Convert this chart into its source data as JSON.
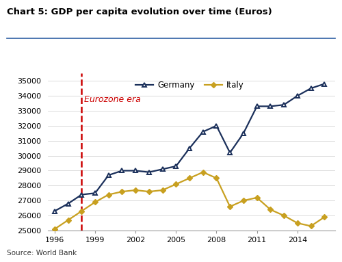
{
  "title": "Chart 5: GDP per capita evolution over time (Euros)",
  "source": "Source: World Bank",
  "years": [
    1996,
    1997,
    1998,
    1999,
    2000,
    2001,
    2002,
    2003,
    2004,
    2005,
    2006,
    2007,
    2008,
    2009,
    2010,
    2011,
    2012,
    2013,
    2014,
    2015,
    2016
  ],
  "germany": [
    26300,
    26800,
    27400,
    27500,
    28700,
    29000,
    29000,
    28900,
    29100,
    29300,
    30500,
    31600,
    32000,
    30200,
    31500,
    33300,
    33300,
    33400,
    34000,
    34500,
    34800
  ],
  "italy": [
    25100,
    25700,
    26300,
    26900,
    27400,
    27600,
    27700,
    27600,
    27700,
    28100,
    28500,
    28900,
    28500,
    26600,
    27000,
    27200,
    26400,
    26000,
    25500,
    25300,
    25900
  ],
  "germany_color": "#1a2f5a",
  "italy_color": "#c8a020",
  "dashed_line_x": 1998,
  "dashed_line_color": "#cc0000",
  "annotation_text": "Eurozone era",
  "annotation_color": "#cc0000",
  "ylim": [
    25000,
    35500
  ],
  "yticks": [
    25000,
    26000,
    27000,
    28000,
    29000,
    30000,
    31000,
    32000,
    33000,
    34000,
    35000
  ],
  "xticks": [
    1996,
    1999,
    2002,
    2005,
    2008,
    2011,
    2014
  ],
  "xlim_left": 1995.5,
  "xlim_right": 2016.8,
  "background_color": "#ffffff",
  "separator_color": "#2e5fa3",
  "legend_germany": "Germany",
  "legend_italy": "Italy",
  "title_fontsize": 9.5,
  "tick_fontsize": 8,
  "source_fontsize": 7.5
}
